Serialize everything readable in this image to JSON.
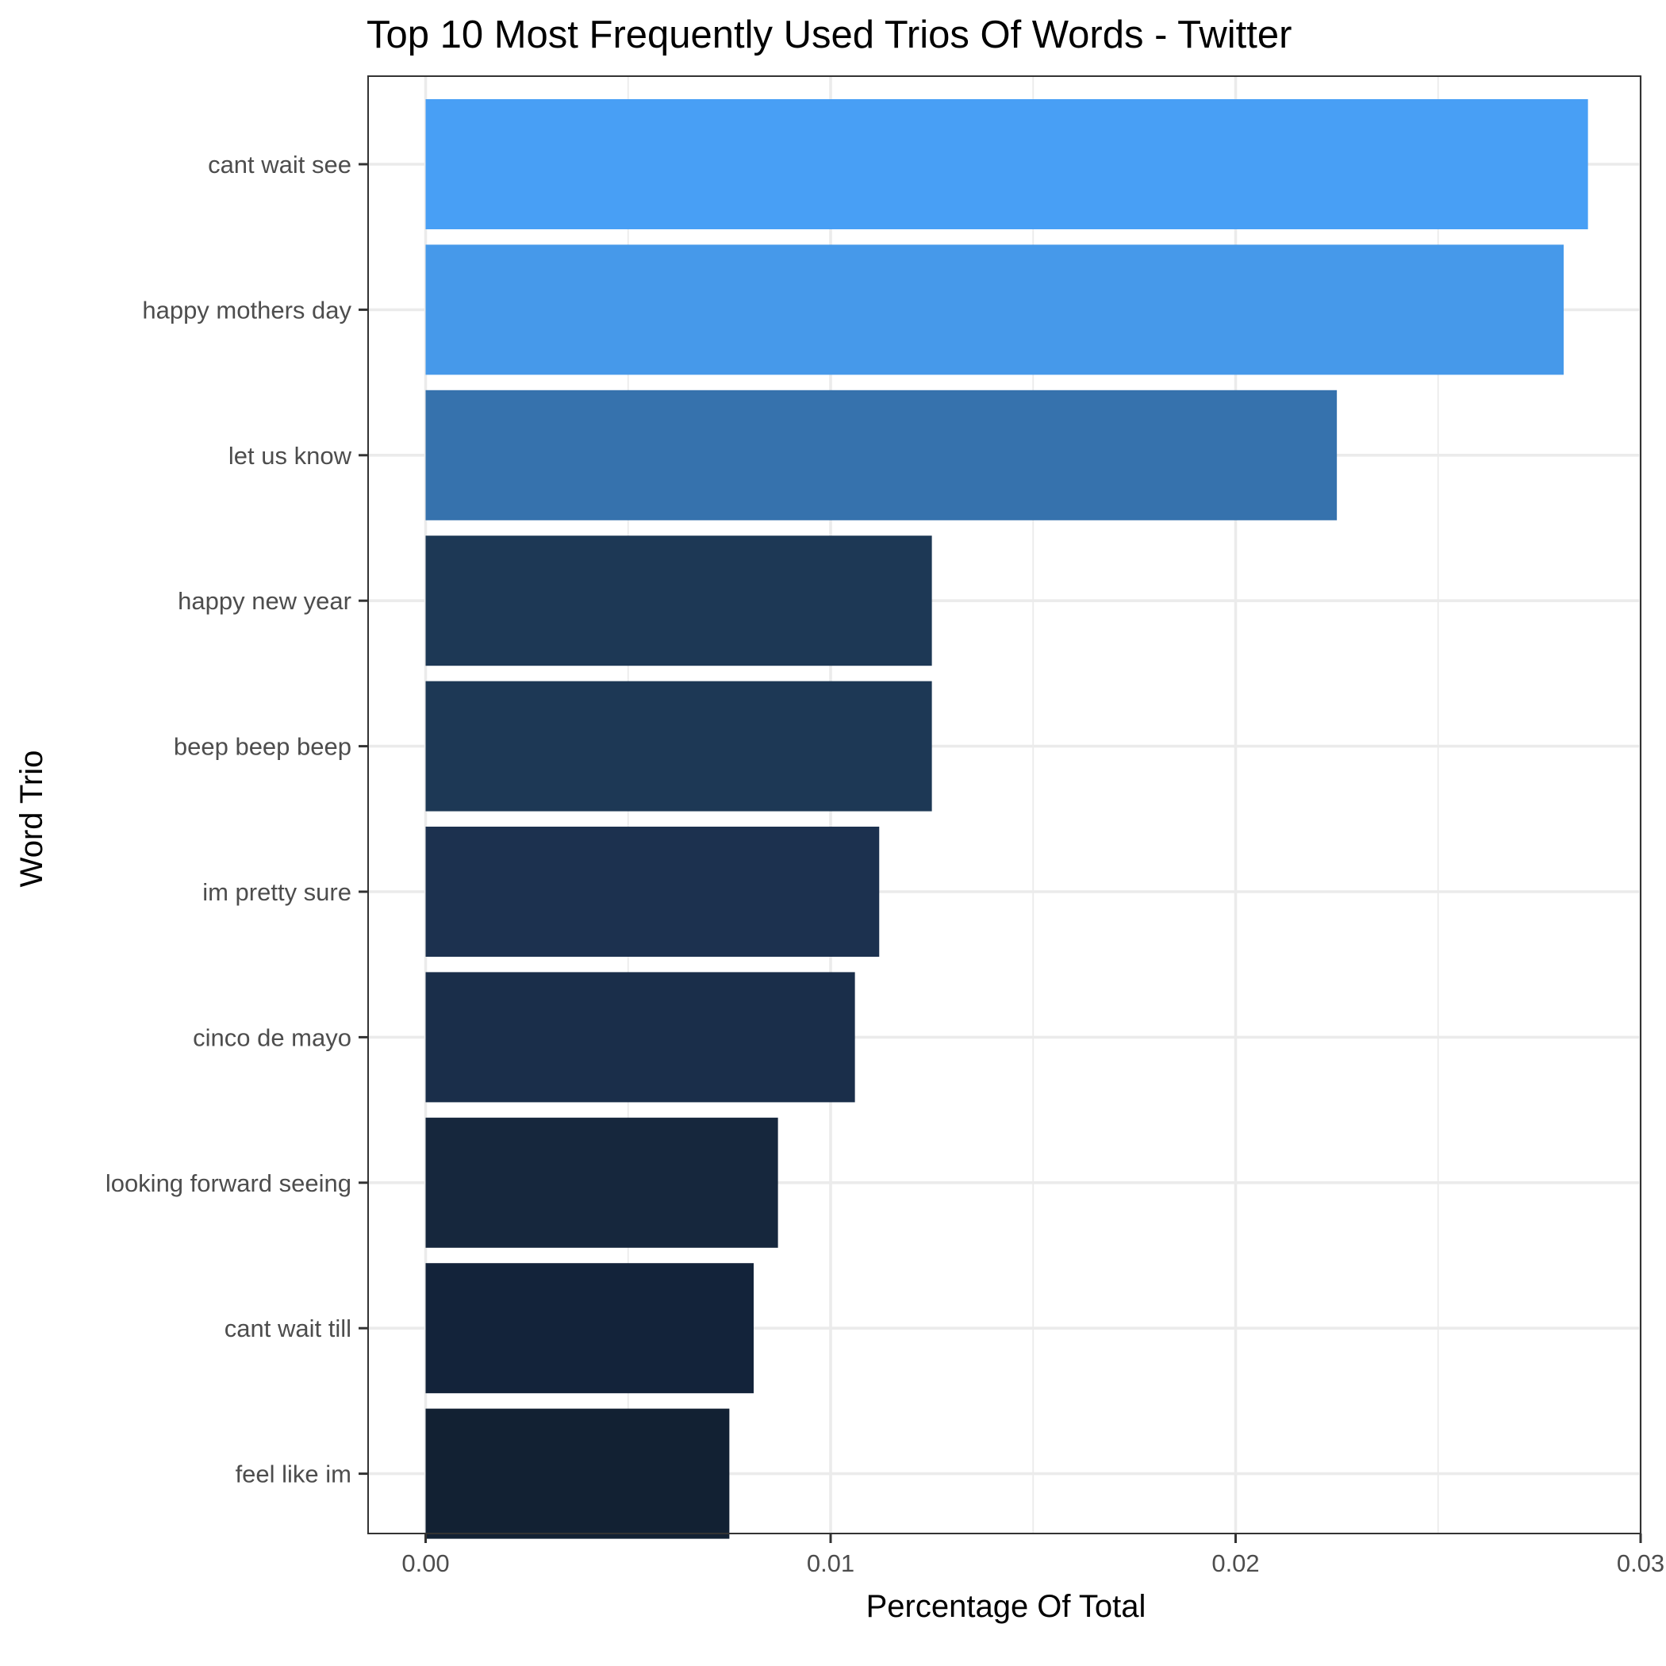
{
  "chart_data": {
    "type": "bar",
    "orientation": "horizontal",
    "title": "Top 10 Most Frequently Used Trios Of Words - Twitter",
    "xlabel": "Percentage Of Total",
    "ylabel": "Word Trio",
    "xlim": [
      -0.0014,
      0.03
    ],
    "x_ticks": [
      "0.00",
      "0.01",
      "0.02",
      "0.03"
    ],
    "x_tick_values": [
      0,
      0.01,
      0.02,
      0.03
    ],
    "grid": true,
    "categories": [
      "cant wait see",
      "happy mothers day",
      "let us know",
      "happy new year",
      "beep beep beep",
      "im pretty sure",
      "cinco de mayo",
      "looking forward seeing",
      "cant wait till",
      "feel like im"
    ],
    "values": [
      0.0287,
      0.0281,
      0.0225,
      0.0125,
      0.0125,
      0.0112,
      0.0106,
      0.0087,
      0.0081,
      0.0075
    ],
    "colors": [
      "#489ff5",
      "#4699ea",
      "#3672ad",
      "#1d3855",
      "#1d3855",
      "#1c314f",
      "#1a2e4a",
      "#16273d",
      "#13233a",
      "#122133"
    ]
  }
}
